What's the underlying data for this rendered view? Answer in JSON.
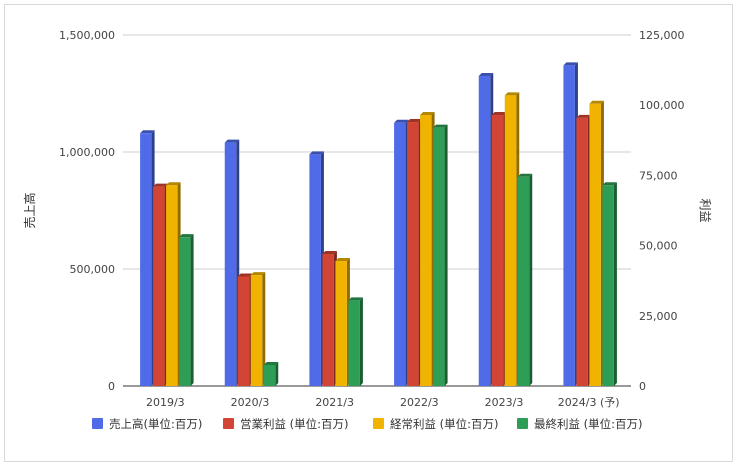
{
  "chart_data": {
    "type": "bar",
    "categories": [
      "2019/3",
      "2020/3",
      "2021/3",
      "2022/3",
      "2023/3",
      "2024/3 (予)"
    ],
    "y_left": {
      "label": "売上高",
      "ticks": [
        "0",
        "500,000",
        "1,000,000",
        "1,500,000"
      ],
      "range": [
        0,
        1500000
      ]
    },
    "y_right": {
      "label": "利益",
      "ticks": [
        "0",
        "25,000",
        "50,000",
        "75,000",
        "100,000",
        "125,000"
      ],
      "range": [
        0,
        125000
      ]
    },
    "series": [
      {
        "name": "売上高(単位:百万)",
        "axis": "left",
        "color": "#4f6be8",
        "values": [
          1080000,
          1040000,
          990000,
          1125000,
          1325000,
          1370000
        ]
      },
      {
        "name": "営業利益 (単位:百万)",
        "axis": "right",
        "color": "#d24433",
        "values": [
          71000,
          39000,
          47000,
          94000,
          96500,
          95500
        ]
      },
      {
        "name": "経常利益 (単位:百万)",
        "axis": "right",
        "color": "#f0b400",
        "values": [
          71500,
          39500,
          44500,
          96500,
          103500,
          100500
        ]
      },
      {
        "name": "最終利益 (単位:百万)",
        "axis": "right",
        "color": "#2e9d55",
        "values": [
          53000,
          7500,
          30500,
          92000,
          74500,
          71500
        ]
      }
    ],
    "legend_position": "bottom",
    "grid": true
  }
}
